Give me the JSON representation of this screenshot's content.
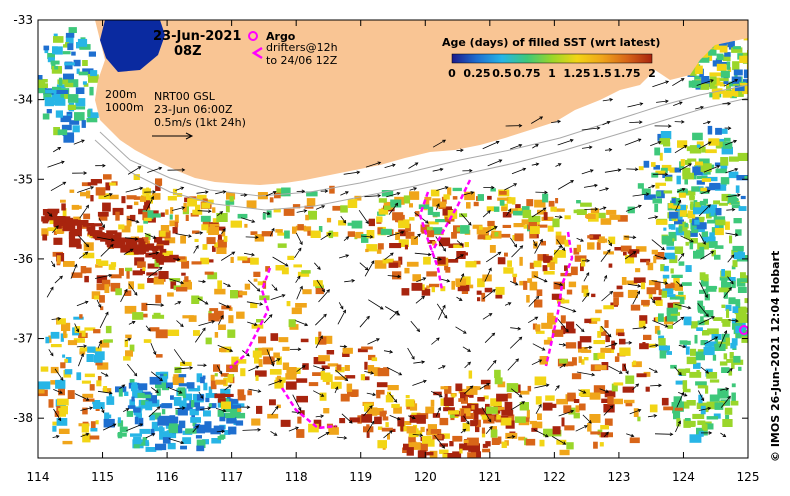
{
  "map": {
    "title_date": "23-Jun-2021",
    "title_time": "08Z",
    "legend": {
      "argo_label": "Argo",
      "drifters_label": "drifters@12h",
      "drifters_window": "to 24/06 12Z",
      "argo_color": "#ff00ff",
      "drifter_color": "#ff00ff"
    },
    "depth_contours": [
      "200m",
      "1000m"
    ],
    "current_info": {
      "product": "NRT00 GSL",
      "time": "23-Jun 06:00Z",
      "scale": "0.5m/s (1kt 24h)"
    },
    "colorbar": {
      "title": "Age (days) of filled SST (wrt latest)",
      "tick_labels": [
        "0",
        "0.25",
        "0.5",
        "0.75",
        "1",
        "1.25",
        "1.5",
        "1.75",
        "2"
      ],
      "colors": [
        "#1a1a8c",
        "#1e6fd0",
        "#27b5e6",
        "#3ec87a",
        "#9ad62a",
        "#f2d515",
        "#f0a51a",
        "#d86518",
        "#a8240e"
      ]
    },
    "lon_labels": [
      "114",
      "115",
      "116",
      "117",
      "118",
      "119",
      "120",
      "121",
      "122",
      "123",
      "124",
      "125"
    ],
    "lat_labels": [
      "-33",
      "-34",
      "-35",
      "-36",
      "-37",
      "-38"
    ],
    "credit": "©  IMOS 26-Jun-2021 12:04 Hobart",
    "colors": {
      "land": "#f9c594",
      "frame": "#000000",
      "deep_blue": "#0a2aa0"
    },
    "lon_range": [
      114,
      125
    ],
    "lat_range": [
      -38.5,
      -33
    ]
  }
}
